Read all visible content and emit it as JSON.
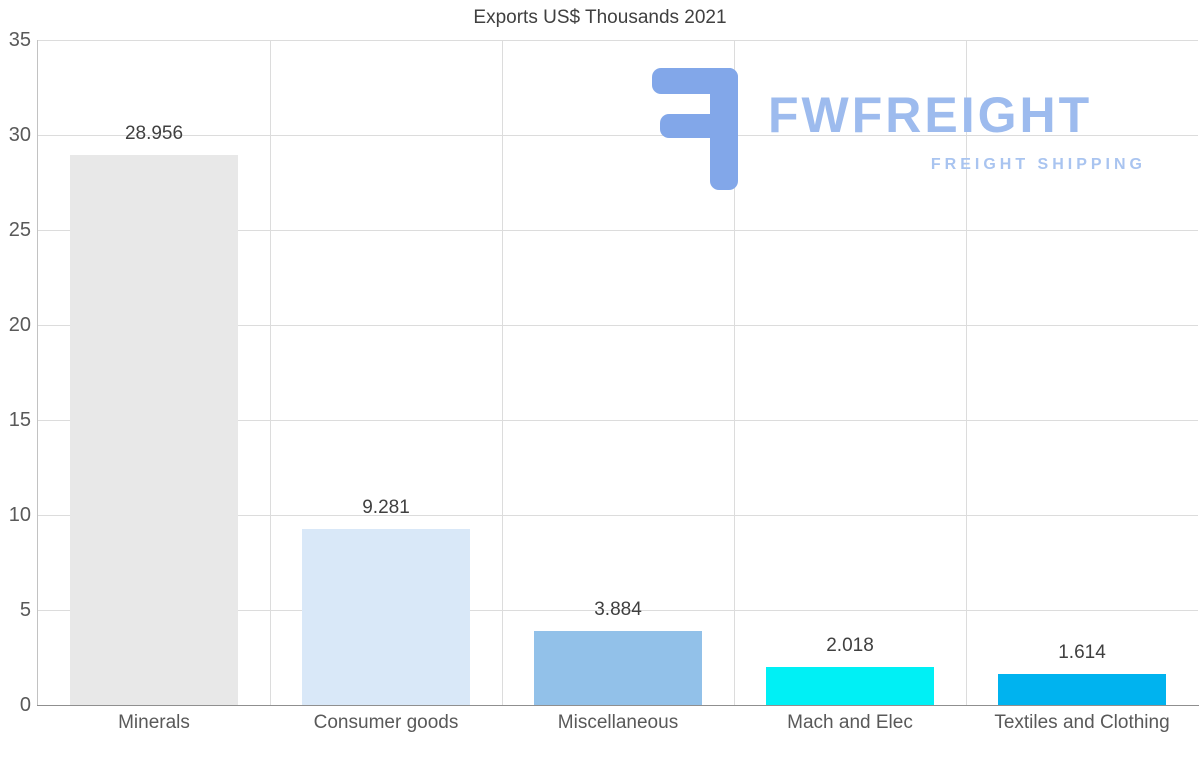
{
  "chart_data": {
    "type": "bar",
    "title": "Exports US$ Thousands 2021",
    "categories": [
      "Minerals",
      "Consumer goods",
      "Miscellaneous",
      "Mach and Elec",
      "Textiles and Clothing"
    ],
    "values": [
      28.956,
      9.281,
      3.884,
      2.018,
      1.614
    ],
    "value_labels": [
      "28.956",
      "9.281",
      "3.884",
      "2.018",
      "1.614"
    ],
    "bar_colors": [
      "#e8e8e8",
      "#d9e8f8",
      "#92c1e9",
      "#00f0f5",
      "#00b3ef"
    ],
    "xlabel": "",
    "ylabel": "",
    "ylim": [
      0,
      35
    ],
    "yticks": [
      0,
      5,
      10,
      15,
      20,
      25,
      30,
      35
    ],
    "grid": true,
    "legend": false
  },
  "logo": {
    "brand": "FWFREIGHT",
    "tagline": "FREIGHT SHIPPING",
    "icon": "fwfreight-f-monogram",
    "mark_color": "#82a7e9",
    "brand_color": "#9dbbee",
    "tagline_color": "#a9c4f0"
  }
}
